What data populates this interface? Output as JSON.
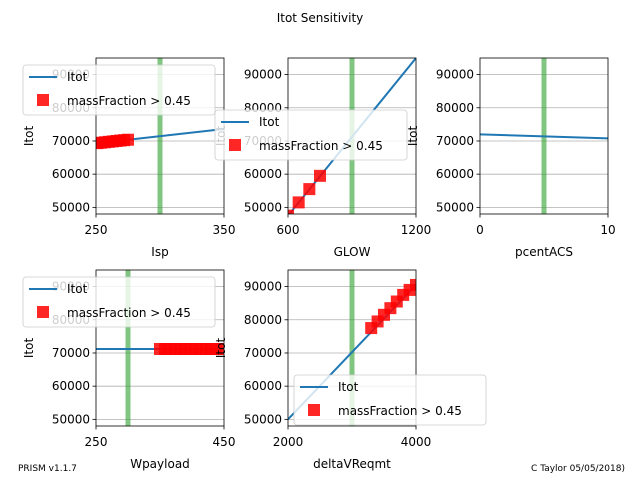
{
  "figure": {
    "title": "Itot Sensitivity",
    "footer_left": "PRISM v1.1.7",
    "footer_right": "C Taylor 05/05/2018)"
  },
  "colors": {
    "line": "#1f77b4",
    "marker": "#ff0000",
    "vline": "#2ca02c",
    "grid": "#b0b0b0"
  },
  "chart_data": [
    {
      "type": "line",
      "xlabel": "Isp",
      "ylabel": "Itot",
      "xlim": [
        250,
        350
      ],
      "ylim": [
        48000,
        95000
      ],
      "xticks": [
        250,
        350
      ],
      "yticks": [
        50000,
        60000,
        70000,
        80000,
        90000
      ],
      "line_x": [
        250,
        350
      ],
      "line_y": [
        69300,
        73600
      ],
      "vline": 300,
      "markers_x": [
        251,
        254,
        257,
        260,
        263,
        266,
        269,
        272,
        275
      ],
      "markers_y": [
        69350,
        69480,
        69610,
        69740,
        69870,
        70000,
        70130,
        70250,
        70380
      ],
      "legend": {
        "loc": "upper-left",
        "entries": [
          "Itot",
          "massFraction > 0.45"
        ]
      }
    },
    {
      "type": "line",
      "xlabel": "GLOW",
      "ylabel": "Itot",
      "xlim": [
        600,
        1200
      ],
      "ylim": [
        48000,
        95000
      ],
      "xticks": [
        600,
        1200
      ],
      "yticks": [
        50000,
        60000,
        70000,
        80000,
        90000
      ],
      "line_x": [
        600,
        1200
      ],
      "line_y": [
        47500,
        95000
      ],
      "vline": 900,
      "markers_x": [
        600,
        650,
        700,
        750
      ],
      "markers_y": [
        47500,
        51500,
        55500,
        59500
      ],
      "legend": {
        "loc": "center-left",
        "entries": [
          "Itot",
          "massFraction > 0.45"
        ]
      }
    },
    {
      "type": "line",
      "xlabel": "pcentACS",
      "ylabel": "Itot",
      "xlim": [
        0,
        10
      ],
      "ylim": [
        48000,
        95000
      ],
      "xticks": [
        0,
        10
      ],
      "yticks": [
        50000,
        60000,
        70000,
        80000,
        90000
      ],
      "line_x": [
        0,
        10
      ],
      "line_y": [
        72000,
        70800
      ],
      "vline": 5,
      "markers_x": [],
      "markers_y": [],
      "legend": null
    },
    {
      "type": "line",
      "xlabel": "Wpayload",
      "ylabel": "Itot",
      "xlim": [
        250,
        450
      ],
      "ylim": [
        48000,
        95000
      ],
      "xticks": [
        250,
        450
      ],
      "yticks": [
        50000,
        60000,
        70000,
        80000,
        90000
      ],
      "line_x": [
        250,
        450
      ],
      "line_y": [
        71200,
        71200
      ],
      "vline": 300,
      "markers_x": [
        350,
        358,
        366,
        374,
        382,
        390,
        398,
        406,
        414,
        422,
        430,
        438,
        446
      ],
      "markers_y": [
        71200,
        71200,
        71200,
        71200,
        71200,
        71200,
        71200,
        71200,
        71200,
        71200,
        71200,
        71200,
        71200
      ],
      "legend": {
        "loc": "upper-left",
        "entries": [
          "Itot",
          "massFraction > 0.45"
        ]
      }
    },
    {
      "type": "line",
      "xlabel": "deltaVReqmt",
      "ylabel": "Itot",
      "xlim": [
        2000,
        4000
      ],
      "ylim": [
        48000,
        95000
      ],
      "xticks": [
        2000,
        4000
      ],
      "yticks": [
        50000,
        60000,
        70000,
        80000,
        90000
      ],
      "line_x": [
        2000,
        4000
      ],
      "line_y": [
        50000,
        90500
      ],
      "vline": 3000,
      "markers_x": [
        3300,
        3400,
        3500,
        3600,
        3700,
        3800,
        3900,
        4000
      ],
      "markers_y": [
        77500,
        79500,
        81500,
        83500,
        85500,
        87500,
        89000,
        90500
      ],
      "legend": {
        "loc": "lower-right",
        "entries": [
          "Itot",
          "massFraction > 0.45"
        ]
      }
    }
  ]
}
